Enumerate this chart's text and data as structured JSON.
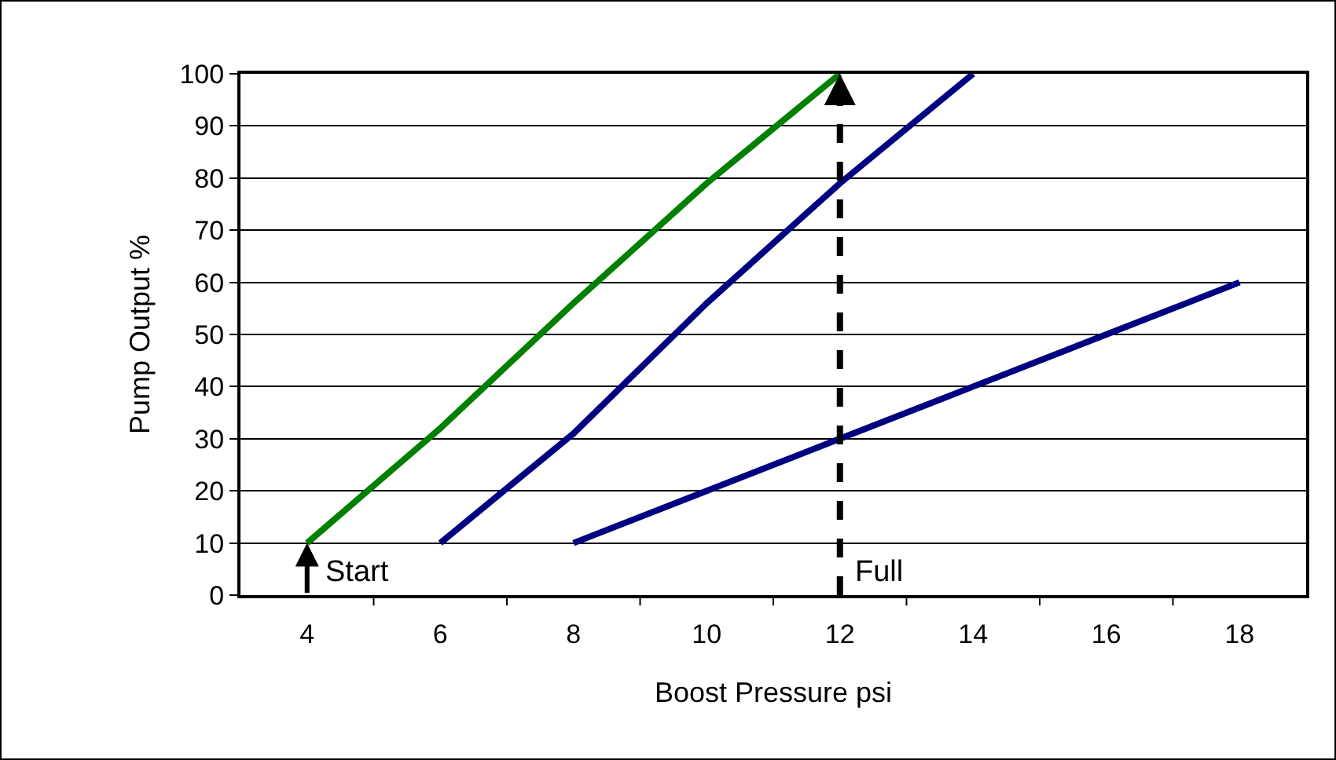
{
  "chart_data": {
    "type": "line",
    "xlabel": "Boost Pressure psi",
    "ylabel": "Pump Output %",
    "xlim": [
      3,
      19
    ],
    "xticks": [
      4,
      {
        "value": 5,
        "label": null
      },
      6,
      {
        "value": 7,
        "label": null
      },
      8,
      {
        "value": 9,
        "label": null
      },
      10,
      {
        "value": 11,
        "label": null
      },
      12,
      {
        "value": 13,
        "label": null
      },
      14,
      {
        "value": 15,
        "label": null
      },
      16,
      {
        "value": 17,
        "label": null
      },
      18
    ],
    "ylim": [
      0,
      100
    ],
    "yticks": [
      0,
      10,
      20,
      30,
      40,
      50,
      60,
      70,
      80,
      90,
      100
    ],
    "grid": "y",
    "marker": "none",
    "line_style": "solid",
    "series": [
      {
        "color": "#008000",
        "x": [
          4,
          6,
          8,
          10,
          12
        ],
        "values": [
          10,
          32,
          56,
          79,
          100
        ]
      },
      {
        "color": "#000080",
        "x": [
          6,
          8,
          10,
          12,
          14
        ],
        "values": [
          10,
          31,
          56,
          79,
          100
        ]
      },
      {
        "color": "#000080",
        "x": [
          8,
          10,
          12,
          14,
          16,
          18
        ],
        "values": [
          10,
          20,
          30,
          40,
          50,
          60
        ]
      }
    ],
    "ref_lines": [
      {
        "axis": "x",
        "value": 12,
        "label": "Full",
        "line_style": "dashed",
        "color": "#000000"
      }
    ],
    "annotations": [
      {
        "text": "Start",
        "x": 4,
        "y": 10
      }
    ]
  }
}
